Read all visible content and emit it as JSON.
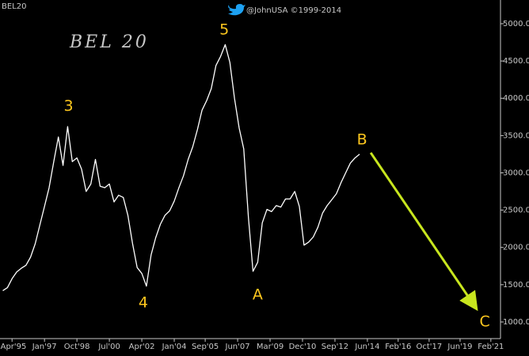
{
  "chart_data": {
    "type": "line",
    "title": "BEL20",
    "subtitle": "@JohnUSA ©1999-2014",
    "label": "BEL 20",
    "x": [
      1994.75,
      1995.0,
      1995.25,
      1995.5,
      1995.75,
      1996.0,
      1996.25,
      1996.5,
      1996.75,
      1997.0,
      1997.25,
      1997.5,
      1997.75,
      1998.0,
      1998.25,
      1998.5,
      1998.75,
      1999.0,
      1999.25,
      1999.5,
      1999.75,
      2000.0,
      2000.25,
      2000.5,
      2000.75,
      2001.0,
      2001.25,
      2001.5,
      2001.75,
      2002.0,
      2002.25,
      2002.5,
      2002.75,
      2003.0,
      2003.25,
      2003.5,
      2003.75,
      2004.0,
      2004.25,
      2004.5,
      2004.75,
      2005.0,
      2005.25,
      2005.5,
      2005.75,
      2006.0,
      2006.25,
      2006.5,
      2006.75,
      2007.0,
      2007.25,
      2007.5,
      2007.75,
      2008.0,
      2008.25,
      2008.5,
      2008.75,
      2009.0,
      2009.25,
      2009.5,
      2009.75,
      2010.0,
      2010.25,
      2010.5,
      2010.75,
      2011.0,
      2011.25,
      2011.5,
      2011.75,
      2012.0,
      2012.25,
      2012.5,
      2012.75,
      2013.0,
      2013.25,
      2013.5,
      2013.75,
      2014.0
    ],
    "series": [
      {
        "name": "BEL20",
        "color": "#ffffff",
        "values": [
          1420,
          1460,
          1580,
          1670,
          1720,
          1760,
          1870,
          2050,
          2300,
          2550,
          2800,
          3150,
          3480,
          3100,
          3620,
          3150,
          3200,
          3050,
          2750,
          2850,
          3180,
          2820,
          2800,
          2850,
          2610,
          2700,
          2670,
          2430,
          2050,
          1730,
          1650,
          1480,
          1900,
          2130,
          2310,
          2430,
          2490,
          2620,
          2800,
          2960,
          3180,
          3350,
          3580,
          3840,
          3970,
          4130,
          4440,
          4560,
          4720,
          4480,
          4000,
          3600,
          3320,
          2400,
          1680,
          1800,
          2330,
          2510,
          2480,
          2560,
          2540,
          2650,
          2650,
          2750,
          2550,
          2030,
          2070,
          2140,
          2270,
          2460,
          2560,
          2640,
          2720,
          2870,
          3000,
          3130,
          3200,
          3250
        ]
      }
    ],
    "annotations": [
      {
        "text": "3",
        "x": 1998.3,
        "y": 3890
      },
      {
        "text": "4",
        "x": 2002.33,
        "y": 1255
      },
      {
        "text": "5",
        "x": 2006.7,
        "y": 4915
      },
      {
        "text": "A",
        "x": 2008.5,
        "y": 1360
      },
      {
        "text": "B",
        "x": 2014.13,
        "y": 3440
      },
      {
        "text": "C",
        "x": 2020.75,
        "y": 1000
      }
    ],
    "annotation_color": "#ffc81e",
    "projection": {
      "x": [
        2014.6,
        2020.24
      ],
      "y": [
        3270,
        1200
      ],
      "color": "#c8e61e"
    },
    "xlim": [
      1994.6,
      2021.6
    ],
    "xticks": [
      {
        "value": 1995.25,
        "label": "Apr'95"
      },
      {
        "value": 1997.0,
        "label": "Jan'97"
      },
      {
        "value": 1998.75,
        "label": "Oct'98"
      },
      {
        "value": 2000.5,
        "label": "Jul'00"
      },
      {
        "value": 2002.25,
        "label": "Apr'02"
      },
      {
        "value": 2004.0,
        "label": "Jan'04"
      },
      {
        "value": 2005.67,
        "label": "Sep'05"
      },
      {
        "value": 2007.42,
        "label": "Jun'07"
      },
      {
        "value": 2009.17,
        "label": "Mar'09"
      },
      {
        "value": 2010.92,
        "label": "Dec'10"
      },
      {
        "value": 2012.67,
        "label": "Sep'12"
      },
      {
        "value": 2014.42,
        "label": "Jun'14"
      },
      {
        "value": 2016.08,
        "label": "Feb'16"
      },
      {
        "value": 2017.75,
        "label": "Oct'17"
      },
      {
        "value": 2019.42,
        "label": "Jun'19"
      },
      {
        "value": 2021.08,
        "label": "Feb'21"
      }
    ],
    "ylim": [
      777,
      5318
    ],
    "yticks": [
      {
        "value": 1000,
        "label": "1000.00"
      },
      {
        "value": 1500,
        "label": "1500.00"
      },
      {
        "value": 2000,
        "label": "2000.00"
      },
      {
        "value": 2500,
        "label": "2500.00"
      },
      {
        "value": 3000,
        "label": "3000.00"
      },
      {
        "value": 3500,
        "label": "3500.00"
      },
      {
        "value": 4000,
        "label": "4000.00"
      },
      {
        "value": 4500,
        "label": "4500.00"
      },
      {
        "value": 5000,
        "label": "5000.00"
      }
    ],
    "grid": false
  }
}
